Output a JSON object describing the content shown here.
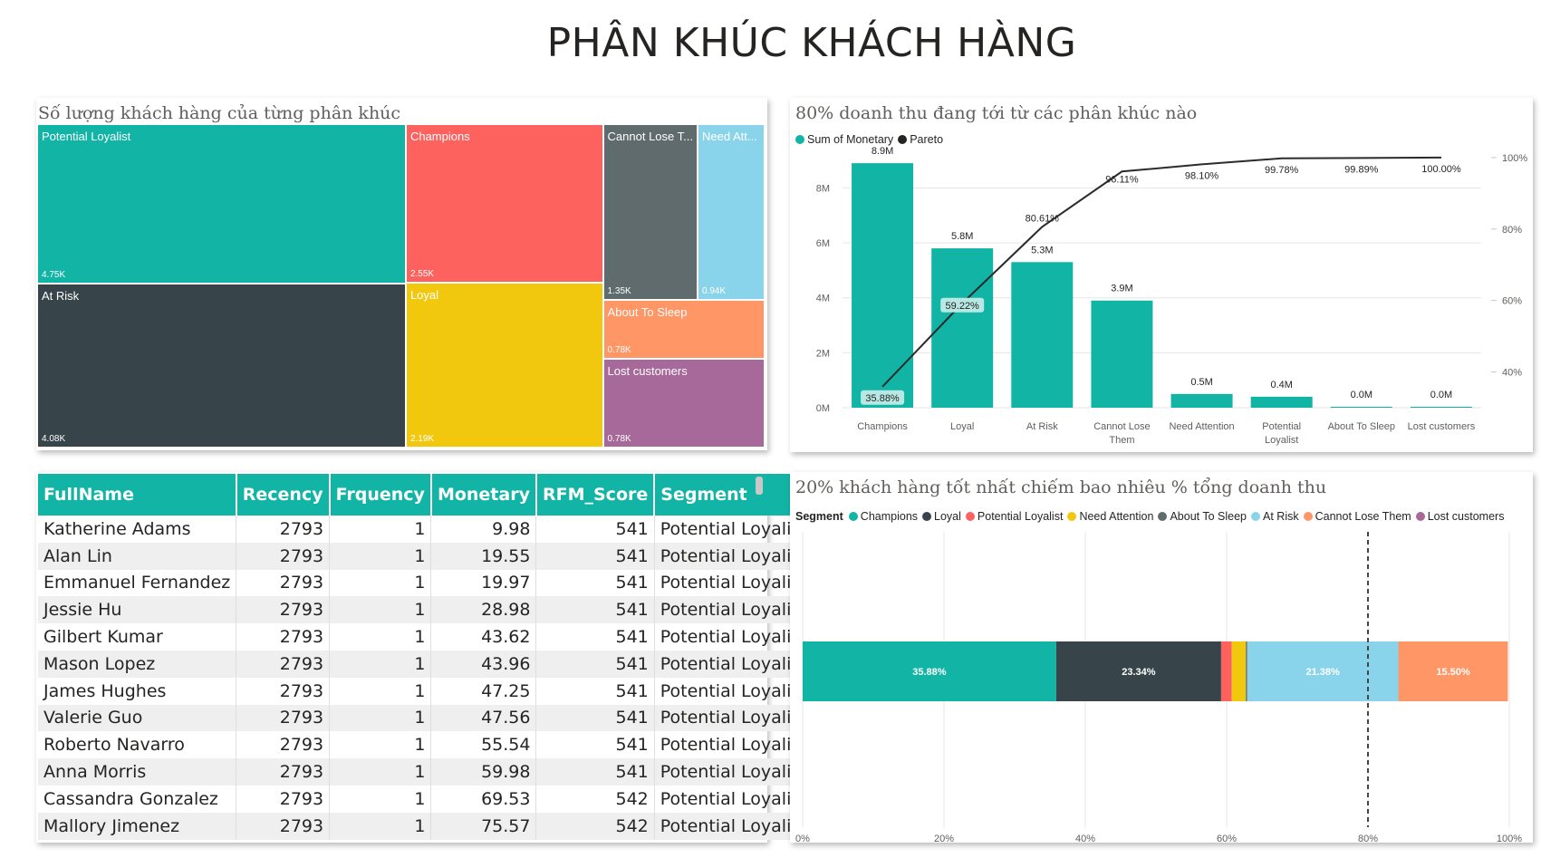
{
  "page_title": "PHÂN KHÚC KHÁCH HÀNG",
  "colors": {
    "teal": "#12b4a6",
    "dark": "#37444a",
    "red": "#fd625e",
    "yellow": "#f2c80f",
    "gray": "#5f6b6d",
    "lightblue": "#8ad4eb",
    "orange": "#fe9666",
    "purple": "#a66999",
    "line": "#2b2b2b"
  },
  "treemap": {
    "title": "Số lượng khách hàng của từng phân khúc",
    "cells": [
      {
        "label": "Potential Loyalist",
        "value": "4.75K",
        "color": "#12b4a6"
      },
      {
        "label": "At Risk",
        "value": "4.08K",
        "color": "#37444a"
      },
      {
        "label": "Champions",
        "value": "2.55K",
        "color": "#fd625e"
      },
      {
        "label": "Loyal",
        "value": "2.19K",
        "color": "#f2c80f"
      },
      {
        "label": "Cannot Lose T...",
        "value": "1.35K",
        "color": "#5f6b6d"
      },
      {
        "label": "Need Att...",
        "value": "0.94K",
        "color": "#8ad4eb"
      },
      {
        "label": "About To Sleep",
        "value": "0.78K",
        "color": "#fe9666"
      },
      {
        "label": "Lost customers",
        "value": "0.78K",
        "color": "#a66999"
      }
    ]
  },
  "table": {
    "columns": [
      "FullName",
      "Recency",
      "Frquency",
      "Monetary",
      "RFM_Score",
      "Segment"
    ],
    "rows": [
      [
        "Katherine Adams",
        "2793",
        "1",
        "9.98",
        "541",
        "Potential Loyalist"
      ],
      [
        "Alan Lin",
        "2793",
        "1",
        "19.55",
        "541",
        "Potential Loyalist"
      ],
      [
        "Emmanuel Fernandez",
        "2793",
        "1",
        "19.97",
        "541",
        "Potential Loyalist"
      ],
      [
        "Jessie Hu",
        "2793",
        "1",
        "28.98",
        "541",
        "Potential Loyalist"
      ],
      [
        "Gilbert Kumar",
        "2793",
        "1",
        "43.62",
        "541",
        "Potential Loyalist"
      ],
      [
        "Mason Lopez",
        "2793",
        "1",
        "43.96",
        "541",
        "Potential Loyalist"
      ],
      [
        "James Hughes",
        "2793",
        "1",
        "47.25",
        "541",
        "Potential Loyalist"
      ],
      [
        "Valerie Guo",
        "2793",
        "1",
        "47.56",
        "541",
        "Potential Loyalist"
      ],
      [
        "Roberto Navarro",
        "2793",
        "1",
        "55.54",
        "541",
        "Potential Loyalist"
      ],
      [
        "Anna Morris",
        "2793",
        "1",
        "59.98",
        "541",
        "Potential Loyalist"
      ],
      [
        "Cassandra Gonzalez",
        "2793",
        "1",
        "69.53",
        "542",
        "Potential Loyalist"
      ],
      [
        "Mallory Jimenez",
        "2793",
        "1",
        "75.57",
        "542",
        "Potential Loyalist"
      ]
    ]
  },
  "chart_data": [
    {
      "type": "treemap",
      "title": "Số lượng khách hàng của từng phân khúc",
      "categories": [
        "Potential Loyalist",
        "At Risk",
        "Champions",
        "Loyal",
        "Cannot Lose Them",
        "Need Attention",
        "About To Sleep",
        "Lost customers"
      ],
      "values": [
        4750,
        4080,
        2550,
        2190,
        1350,
        940,
        780,
        780
      ],
      "value_labels": [
        "4.75K",
        "4.08K",
        "2.55K",
        "2.19K",
        "1.35K",
        "0.94K",
        "0.78K",
        "0.78K"
      ]
    },
    {
      "type": "bar",
      "title": "80% doanh thu đang tới từ các phân khúc nào",
      "legend": [
        {
          "name": "Sum of Monetary",
          "color": "#12b4a6"
        },
        {
          "name": "Pareto",
          "color": "#252423"
        }
      ],
      "legend_placement": "top-left",
      "categories": [
        "Champions",
        "Loyal",
        "At Risk",
        "Cannot Lose Them",
        "Need Attention",
        "Potential Loyalist",
        "About To Sleep",
        "Lost customers"
      ],
      "category_lines": [
        [
          "Champions"
        ],
        [
          "Loyal"
        ],
        [
          "At Risk"
        ],
        [
          "Cannot Lose",
          "Them"
        ],
        [
          "Need Attention"
        ],
        [
          "Potential",
          "Loyalist"
        ],
        [
          "About To Sleep"
        ],
        [
          "Lost customers"
        ]
      ],
      "series": [
        {
          "name": "Sum of Monetary",
          "type": "bar",
          "values": [
            8.9,
            5.8,
            5.3,
            3.9,
            0.5,
            0.4,
            0.02,
            0.01
          ],
          "labels": [
            "8.9M",
            "5.8M",
            "5.3M",
            "3.9M",
            "0.5M",
            "0.4M",
            "0.0M",
            "0.0M"
          ]
        },
        {
          "name": "Pareto",
          "type": "line",
          "axis": "secondary",
          "values": [
            35.88,
            59.22,
            80.61,
            96.11,
            98.1,
            99.78,
            99.89,
            100.0
          ],
          "labels": [
            "35.88%",
            "59.22%",
            "80.61%",
            "96.11%",
            "98.10%",
            "99.78%",
            "99.89%",
            "100.00%"
          ]
        }
      ],
      "y_ticks": [
        "0M",
        "2M",
        "4M",
        "6M",
        "8M"
      ],
      "ylim": [
        0,
        9.3
      ],
      "y2_ticks": [
        "40%",
        "60%",
        "80%",
        "100%"
      ],
      "y2lim": [
        30,
        101.5
      ],
      "grid": true
    },
    {
      "type": "bar",
      "orientation": "horizontal",
      "stacked": true,
      "title": "20% khách hàng tốt nhất chiếm bao nhiêu % tổng doanh thu",
      "legend_title": "Segment",
      "legend": [
        {
          "name": "Champions",
          "color": "#12b4a6"
        },
        {
          "name": "Loyal",
          "color": "#37444a"
        },
        {
          "name": "Potential Loyalist",
          "color": "#fd625e"
        },
        {
          "name": "Need Attention",
          "color": "#f2c80f"
        },
        {
          "name": "About To Sleep",
          "color": "#5f6b6d"
        },
        {
          "name": "At Risk",
          "color": "#8ad4eb"
        },
        {
          "name": "Cannot Lose Them",
          "color": "#fe9666"
        },
        {
          "name": "Lost customers",
          "color": "#a66999"
        }
      ],
      "segments": [
        {
          "color": "#12b4a6",
          "value": 35.88,
          "label": "35.88%"
        },
        {
          "color": "#37444a",
          "value": 23.34,
          "label": "23.34%"
        },
        {
          "color": "#fd625e",
          "value": 1.5,
          "label": ""
        },
        {
          "color": "#f2c80f",
          "value": 2.0,
          "label": ""
        },
        {
          "color": "#5f6b6d",
          "value": 0.2,
          "label": ""
        },
        {
          "color": "#8ad4eb",
          "value": 21.38,
          "label": "21.38%"
        },
        {
          "color": "#fe9666",
          "value": 15.5,
          "label": "15.50%"
        }
      ],
      "x_ticks": [
        "0%",
        "20%",
        "40%",
        "60%",
        "80%",
        "100%"
      ],
      "xlim": [
        0,
        100
      ],
      "reference_line": 80,
      "grid": true
    }
  ]
}
